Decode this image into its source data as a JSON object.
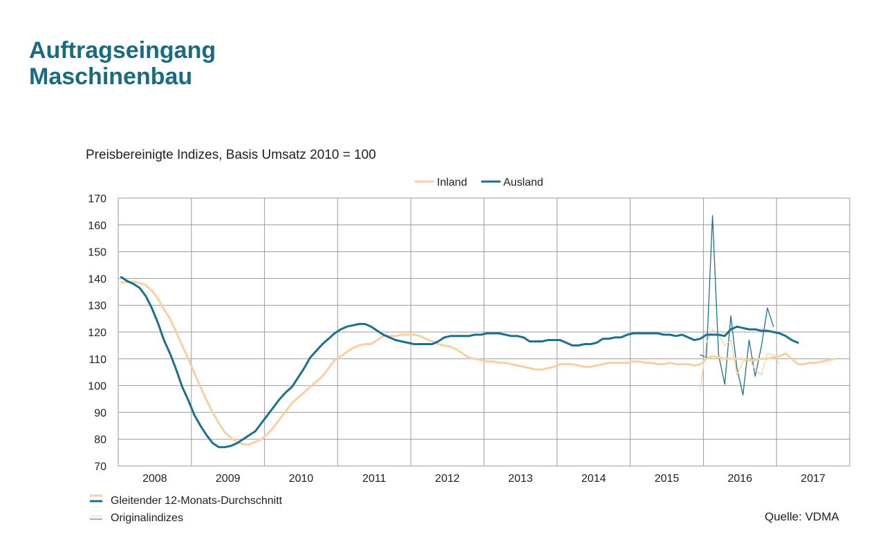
{
  "title_lines": [
    "Auftragseingang",
    "Maschinenbau"
  ],
  "subtitle": "Preisbereinigte Indizes, Basis Umsatz 2010 = 100",
  "source": "Quelle: VDMA",
  "bottom_legend": {
    "moving_average": "Gleitender 12-Monats-Durchschnitt",
    "original": "Originalindizes"
  },
  "colors": {
    "inland": "#f8cfa0",
    "ausland": "#1a6f8c",
    "title": "#1a6a80",
    "grid": "#9a9a9a"
  },
  "chart_data": {
    "type": "line",
    "x_axis": {
      "tick_labels": [
        "2008",
        "2009",
        "2010",
        "2011",
        "2012",
        "2013",
        "2014",
        "2015",
        "2016",
        "2017"
      ],
      "range": [
        "2008-01",
        "2017-12"
      ]
    },
    "y_axis": {
      "ylim": [
        70,
        170
      ],
      "ticks": [
        70,
        80,
        90,
        100,
        110,
        120,
        130,
        140,
        150,
        160,
        170
      ]
    },
    "grid": true,
    "legend": {
      "placement": "top-center",
      "entries": [
        "Inland",
        "Ausland"
      ]
    },
    "series": [
      {
        "name": "Inland",
        "kind": "moving_average",
        "start": "2008-01",
        "values": [
          138.5,
          138.6,
          138.8,
          138.3,
          137.5,
          135.5,
          132.5,
          128.5,
          125,
          120,
          115,
          110,
          104.5,
          99.5,
          94.5,
          90,
          86,
          82.5,
          80.5,
          79,
          78,
          78,
          79,
          80,
          82,
          84.5,
          87.5,
          90.5,
          93.5,
          95.5,
          97.5,
          99.5,
          101.5,
          103.5,
          106.5,
          109.5,
          111,
          112.5,
          114,
          115,
          115.5,
          115.5,
          117,
          118.5,
          118.5,
          118.5,
          119,
          119,
          119,
          118.5,
          117.5,
          116.5,
          115.5,
          115,
          114.5,
          113.5,
          112,
          110.5,
          110,
          109.5,
          109,
          109,
          108.5,
          108.5,
          108,
          107.5,
          107,
          106.5,
          106,
          106,
          106.5,
          107,
          108,
          108,
          108,
          107.5,
          107,
          107,
          107.5,
          108,
          108.5,
          108.5,
          108.5,
          108.5,
          109,
          109,
          108.5,
          108.5,
          108,
          108,
          108.5,
          108,
          108,
          108,
          107.5,
          108,
          110,
          111,
          110.5,
          110,
          110,
          110,
          110,
          109.5,
          109.5,
          110,
          110,
          110.5,
          111,
          112,
          110,
          108,
          108,
          108.5,
          108.5,
          109,
          109.5,
          110
        ]
      },
      {
        "name": "Ausland",
        "kind": "moving_average",
        "start": "2008-01",
        "values": [
          140.5,
          139,
          138,
          136.5,
          133.5,
          129,
          123.5,
          117,
          112,
          106,
          99.5,
          94.5,
          89,
          85,
          81.5,
          78.5,
          77,
          77,
          77.5,
          78.5,
          80,
          81.5,
          83,
          86,
          89,
          92,
          95,
          97.5,
          99.5,
          103,
          106.5,
          110.5,
          113,
          115.5,
          117.5,
          119.5,
          121,
          122,
          122.5,
          123,
          123,
          122,
          120.5,
          119,
          118,
          117,
          116.5,
          116,
          115.5,
          115.5,
          115.5,
          115.5,
          116.5,
          118,
          118.5,
          118.5,
          118.5,
          118.5,
          119,
          119,
          119.5,
          119.5,
          119.5,
          119,
          118.5,
          118.5,
          118,
          116.5,
          116.5,
          116.5,
          117,
          117,
          117,
          116,
          115,
          115,
          115.5,
          115.5,
          116,
          117.5,
          117.5,
          118,
          118,
          119,
          119.5,
          119.5,
          119.5,
          119.5,
          119.5,
          119,
          119,
          118.5,
          119,
          118,
          117,
          117.5,
          119,
          119,
          119,
          118.5,
          121,
          122,
          121.5,
          121,
          121,
          120.5,
          120.5,
          120,
          119.5,
          118.5,
          117,
          116
        ]
      },
      {
        "name": "Inland",
        "kind": "original",
        "start": "2015-12",
        "values": [
          98.5,
          116,
          121,
          119,
          115,
          117,
          104,
          109,
          110,
          106,
          104,
          112,
          111.5,
          108
        ]
      },
      {
        "name": "Ausland",
        "kind": "original",
        "start": "2015-12",
        "values": [
          111.5,
          110.5,
          163.5,
          111.5,
          100.5,
          126,
          106.5,
          96.5,
          117,
          103.5,
          114.5,
          129,
          122
        ]
      }
    ]
  }
}
